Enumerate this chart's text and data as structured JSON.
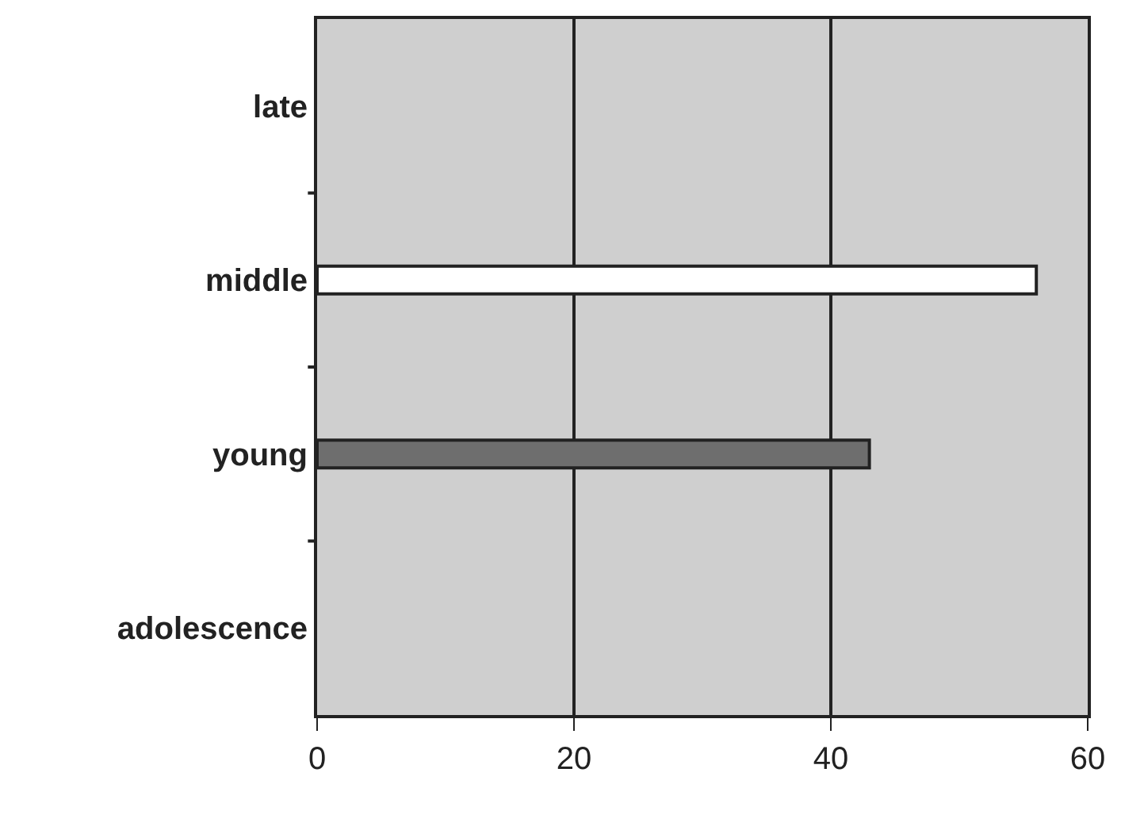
{
  "chart_data": {
    "type": "bar",
    "orientation": "horizontal",
    "categories": [
      "late",
      "middle",
      "young",
      "adolescence"
    ],
    "values": [
      null,
      56,
      43,
      null
    ],
    "colors": [
      "#808080",
      "#ffffff",
      "#6e6e6e",
      "#808080"
    ],
    "xlim": [
      0,
      60
    ],
    "xticks": [
      0,
      20,
      40,
      60
    ],
    "grid": "x"
  }
}
